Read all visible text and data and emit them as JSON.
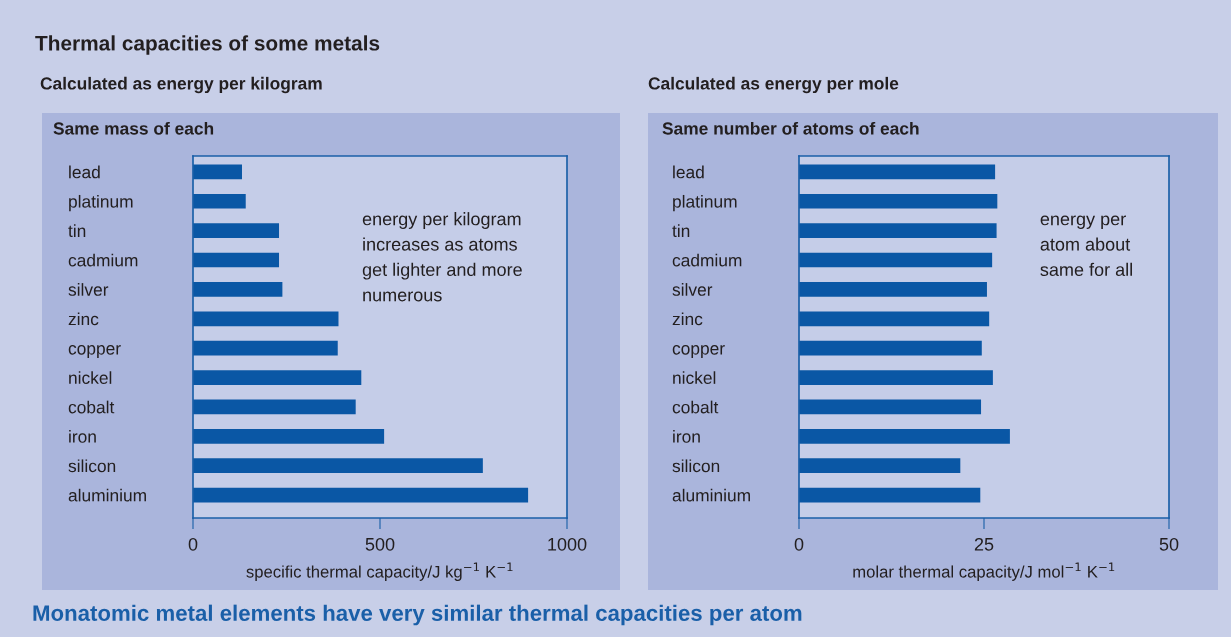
{
  "chart_data": [
    {
      "type": "bar",
      "orientation": "horizontal",
      "title": "Calculated as energy per kilogram",
      "subtitle": "Same mass of each",
      "categories": [
        "lead",
        "platinum",
        "tin",
        "cadmium",
        "silver",
        "zinc",
        "copper",
        "nickel",
        "cobalt",
        "iron",
        "silicon",
        "aluminium"
      ],
      "values": [
        131,
        141,
        230,
        230,
        239,
        389,
        387,
        450,
        435,
        511,
        775,
        896
      ],
      "color": "#0a57a5",
      "xlim": [
        0,
        1000
      ],
      "xticks": [
        0,
        500,
        1000
      ],
      "xlabel": "specific thermal capacity/J kg$^{−1}$ K$^{−1}$",
      "annotations": [
        "energy per kilogram\nincreases as atoms\nget lighter and more\nnumerous",
        "Thermal capacities of some metals"
      ]
    },
    {
      "type": "bar",
      "orientation": "horizontal",
      "title": "Calculated as energy per mole",
      "subtitle": "Same number of atoms of each",
      "categories": [
        "lead",
        "platinum",
        "tin",
        "cadmium",
        "silver",
        "zinc",
        "copper",
        "nickel",
        "cobalt",
        "iron",
        "silicon",
        "aluminium"
      ],
      "values": [
        26.5,
        26.8,
        26.7,
        26.1,
        25.4,
        25.7,
        24.7,
        26.2,
        24.6,
        28.5,
        21.8,
        24.5
      ],
      "color": "#0a57a5",
      "xlim": [
        0,
        50
      ],
      "xticks": [
        0,
        25,
        50
      ],
      "xlabel": "molar thermal capacity/J mol$^{−1}$ K$^{−1}$",
      "annotations": [
        "energy per\natom about\nsame for all",
        "Monatomic metal elements have very similar thermal capacities per atom"
      ]
    }
  ]
}
